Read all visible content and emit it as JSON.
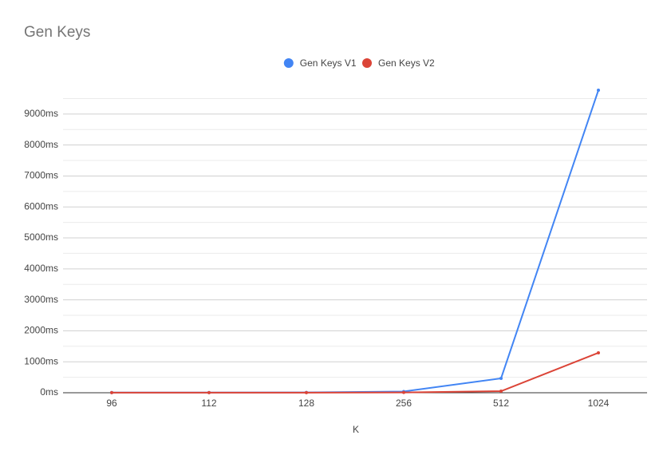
{
  "chart_data": {
    "type": "line",
    "title": "Gen Keys",
    "x_label": "K",
    "categories": [
      "96",
      "112",
      "128",
      "256",
      "512",
      "1024"
    ],
    "series": [
      {
        "name": "Gen Keys V1",
        "color": "#4285f4",
        "values": [
          5,
          5,
          10,
          40,
          465,
          9770
        ]
      },
      {
        "name": "Gen Keys V2",
        "color": "#db4437",
        "values": [
          2,
          2,
          3,
          10,
          50,
          1290
        ]
      }
    ],
    "ylim": [
      0,
      9770
    ],
    "yticks": [
      {
        "value": 0,
        "label": "0ms"
      },
      {
        "value": 1000,
        "label": "1000ms"
      },
      {
        "value": 2000,
        "label": "2000ms"
      },
      {
        "value": 3000,
        "label": "3000ms"
      },
      {
        "value": 4000,
        "label": "4000ms"
      },
      {
        "value": 5000,
        "label": "5000ms"
      },
      {
        "value": 6000,
        "label": "6000ms"
      },
      {
        "value": 7000,
        "label": "7000ms"
      },
      {
        "value": 8000,
        "label": "8000ms"
      },
      {
        "value": 9000,
        "label": "9000ms"
      }
    ],
    "minor_yticks": [
      500,
      1500,
      2500,
      3500,
      4500,
      5500,
      6500,
      7500,
      8500,
      9500
    ],
    "grid": true,
    "legend": "top"
  }
}
